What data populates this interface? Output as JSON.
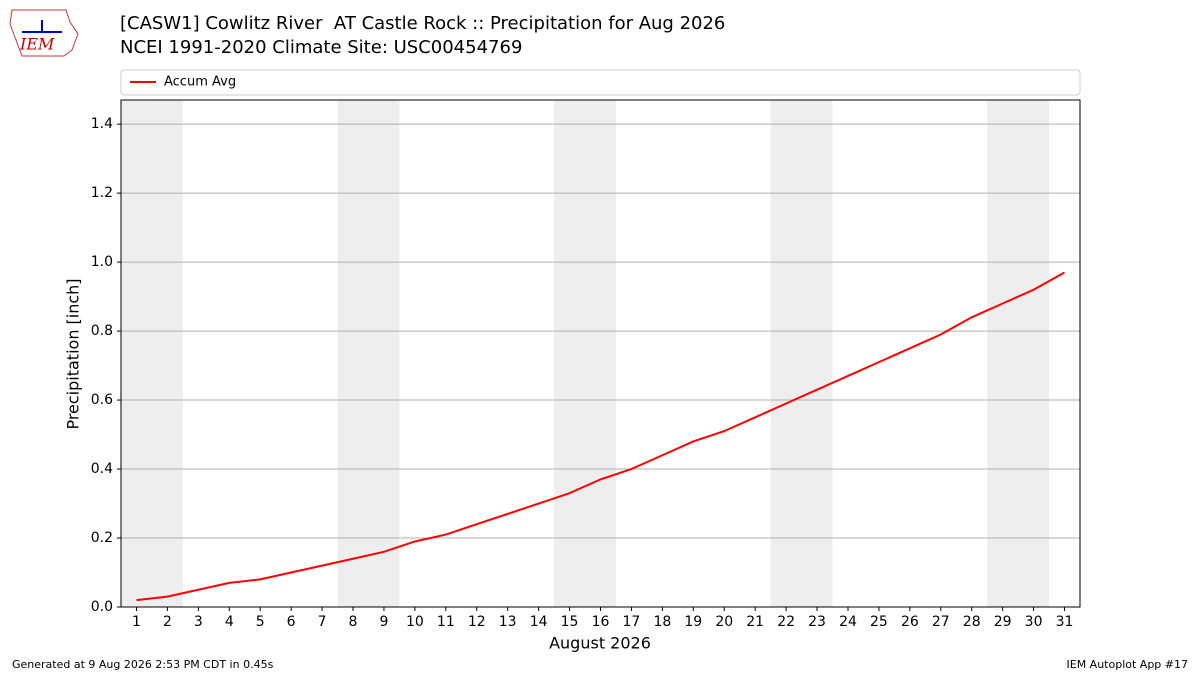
{
  "chart_data": {
    "type": "line",
    "title": "[CASW1] Cowlitz River  AT Castle Rock :: Precipitation for Aug 2026",
    "subtitle": "NCEI 1991-2020 Climate Site: USC00454769",
    "logo_text": "IEM",
    "xlabel": "August 2026",
    "ylabel": "Precipitation [inch]",
    "x": [
      1,
      2,
      3,
      4,
      5,
      6,
      7,
      8,
      9,
      10,
      11,
      12,
      13,
      14,
      15,
      16,
      17,
      18,
      19,
      20,
      21,
      22,
      23,
      24,
      25,
      26,
      27,
      28,
      29,
      30,
      31
    ],
    "series": [
      {
        "name": "Accum Avg",
        "color": "#ff0000",
        "values": [
          0.02,
          0.03,
          0.05,
          0.07,
          0.08,
          0.1,
          0.12,
          0.14,
          0.16,
          0.19,
          0.21,
          0.24,
          0.27,
          0.3,
          0.33,
          0.37,
          0.4,
          0.44,
          0.48,
          0.51,
          0.55,
          0.59,
          0.63,
          0.67,
          0.71,
          0.75,
          0.79,
          0.84,
          0.88,
          0.92,
          0.97
        ]
      }
    ],
    "shaded_spans": [
      [
        0.5,
        2.5
      ],
      [
        7.5,
        9.5
      ],
      [
        14.5,
        16.5
      ],
      [
        21.5,
        23.5
      ],
      [
        28.5,
        30.5
      ]
    ],
    "xlim": [
      0.5,
      31.5
    ],
    "ylim": [
      0,
      1.47
    ],
    "xticks": [
      1,
      2,
      3,
      4,
      5,
      6,
      7,
      8,
      9,
      10,
      11,
      12,
      13,
      14,
      15,
      16,
      17,
      18,
      19,
      20,
      21,
      22,
      23,
      24,
      25,
      26,
      27,
      28,
      29,
      30,
      31
    ],
    "yticks": [
      {
        "value": 0,
        "label": "0.0"
      },
      0.2,
      0.4,
      0.6,
      0.8,
      {
        "value": 1,
        "label": "1.0"
      },
      1.2,
      1.4
    ],
    "grid": true,
    "legend": "top",
    "footer_left": "Generated at 9 Aug 2026 2:53 PM CDT in 0.45s",
    "footer_right": "IEM Autoplot App #17"
  }
}
